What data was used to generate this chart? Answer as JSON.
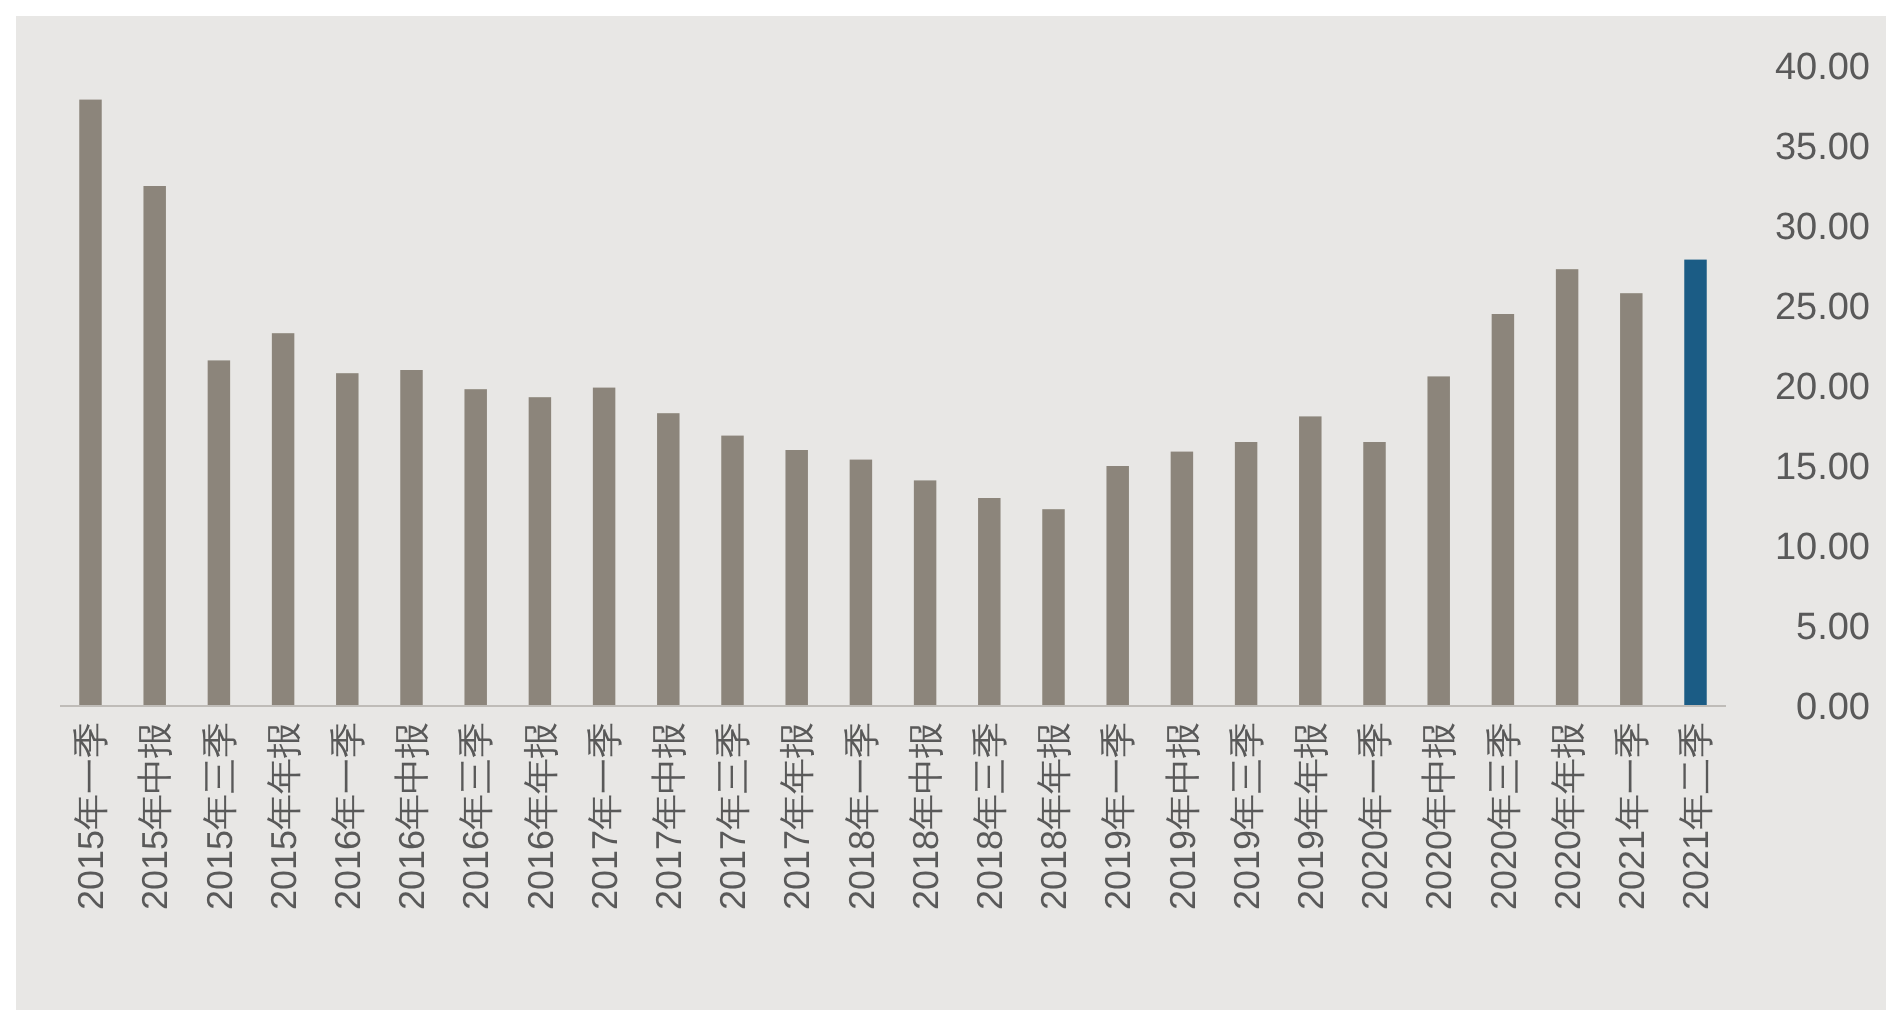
{
  "chart_data": {
    "type": "bar",
    "categories": [
      "2015年一季",
      "2015年中报",
      "2015年三季",
      "2015年年报",
      "2016年一季",
      "2016年中报",
      "2016年三季",
      "2016年年报",
      "2017年一季",
      "2017年中报",
      "2017年三季",
      "2017年年报",
      "2018年一季",
      "2018年中报",
      "2018年三季",
      "2018年年报",
      "2019年一季",
      "2019年中报",
      "2019年三季",
      "2019年年报",
      "2020年一季",
      "2020年中报",
      "2020年三季",
      "2020年年报",
      "2021年一季",
      "2021年二季"
    ],
    "values": [
      37.9,
      32.5,
      21.6,
      23.3,
      20.8,
      21.0,
      19.8,
      19.3,
      19.9,
      18.3,
      16.9,
      16.0,
      15.4,
      14.1,
      13.0,
      12.3,
      15.0,
      15.9,
      16.5,
      18.1,
      16.5,
      20.6,
      24.5,
      27.3,
      25.8,
      27.9
    ],
    "colors": [
      "#8c857b",
      "#8c857b",
      "#8c857b",
      "#8c857b",
      "#8c857b",
      "#8c857b",
      "#8c857b",
      "#8c857b",
      "#8c857b",
      "#8c857b",
      "#8c857b",
      "#8c857b",
      "#8c857b",
      "#8c857b",
      "#8c857b",
      "#8c857b",
      "#8c857b",
      "#8c857b",
      "#8c857b",
      "#8c857b",
      "#8c857b",
      "#8c857b",
      "#8c857b",
      "#8c857b",
      "#8c857b",
      "#1b5c85"
    ],
    "ylim": [
      0,
      40
    ],
    "yticks": [
      {
        "value": 0,
        "label": "0.00"
      },
      {
        "value": 5,
        "label": "5.00"
      },
      {
        "value": 10,
        "label": "10.00"
      },
      {
        "value": 15,
        "label": "15.00"
      },
      {
        "value": 20,
        "label": "20.00"
      },
      {
        "value": 25,
        "label": "25.00"
      },
      {
        "value": 30,
        "label": "30.00"
      },
      {
        "value": 35,
        "label": "35.00"
      },
      {
        "value": 40,
        "label": "40.00"
      }
    ],
    "grid": false
  }
}
